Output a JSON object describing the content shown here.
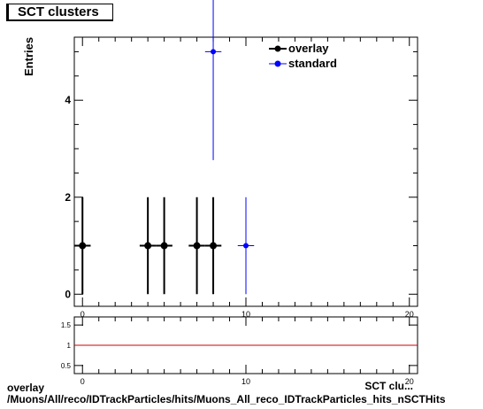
{
  "title": "SCT clusters",
  "footer": {
    "line1": "overlay",
    "line2": "/Muons/All/reco/IDTrackParticles/hits/Muons_All_reco_IDTrackParticles_hits_nSCTHits"
  },
  "colors": {
    "overlay": "#000000",
    "standard": "#0000ff",
    "ratio_line": "#cc0000"
  },
  "chart_data": [
    {
      "type": "scatter",
      "title": "SCT clusters",
      "ylabel": "Entries",
      "xlabel": "SCT clu...",
      "xlim": [
        -0.5,
        20.5
      ],
      "ylim": [
        -0.25,
        5.3
      ],
      "x_ticks": [
        0,
        10,
        20
      ],
      "y_ticks": [
        0,
        2,
        4
      ],
      "legend_position": "top-right",
      "series": [
        {
          "name": "overlay",
          "color": "#000000",
          "points": [
            {
              "x": 0,
              "y": 1,
              "yerr": 1
            },
            {
              "x": 4,
              "y": 1,
              "yerr": 1
            },
            {
              "x": 5,
              "y": 1,
              "yerr": 1
            },
            {
              "x": 7,
              "y": 1,
              "yerr": 1
            },
            {
              "x": 8,
              "y": 1,
              "yerr": 1
            }
          ]
        },
        {
          "name": "standard",
          "color": "#0000ff",
          "points": [
            {
              "x": 8,
              "y": 5,
              "yerr": 2.236
            },
            {
              "x": 10,
              "y": 1,
              "yerr": 1
            }
          ]
        }
      ]
    },
    {
      "type": "line",
      "xlim": [
        -0.5,
        20.5
      ],
      "ylim": [
        0.3,
        1.7
      ],
      "x_ticks": [
        0,
        10,
        20
      ],
      "y_ticks": [
        0.5,
        1,
        1.5
      ],
      "y_tick_labels": [
        "0.5",
        "1",
        "1.5"
      ],
      "series": [
        {
          "color": "#cc0000",
          "x": [
            -0.5,
            20.5
          ],
          "y": [
            1,
            1
          ]
        }
      ]
    }
  ]
}
